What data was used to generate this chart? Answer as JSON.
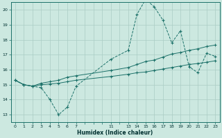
{
  "xlabel": "Humidex (Indice chaleur)",
  "background_color": "#cce8e0",
  "grid_color": "#aaccc4",
  "line_color": "#1a7068",
  "xlim": [
    -0.5,
    23.5
  ],
  "ylim": [
    12.5,
    20.5
  ],
  "yticks": [
    13,
    14,
    15,
    16,
    17,
    18,
    19,
    20
  ],
  "xtick_labels": [
    "0",
    "1",
    "2",
    "3",
    "4",
    "5",
    "6",
    "7",
    "",
    "",
    "",
    "11",
    "",
    "13",
    "14",
    "15",
    "16",
    "17",
    "18",
    "19",
    "20",
    "21",
    "22",
    "23"
  ],
  "series1_x": [
    0,
    1,
    2,
    3,
    4,
    5,
    6,
    7,
    11,
    13,
    14,
    15,
    16,
    17,
    18,
    19,
    20,
    21,
    22,
    23
  ],
  "series1_y": [
    15.3,
    15.0,
    14.9,
    14.8,
    14.0,
    13.0,
    13.5,
    14.9,
    16.7,
    17.3,
    19.7,
    20.7,
    20.2,
    19.3,
    17.8,
    18.6,
    16.2,
    15.8,
    17.1,
    16.9
  ],
  "series2_x": [
    0,
    1,
    2,
    3,
    4,
    5,
    6,
    7,
    11,
    13,
    14,
    15,
    16,
    17,
    18,
    19,
    20,
    21,
    22,
    23
  ],
  "series2_y": [
    15.3,
    15.0,
    14.9,
    15.0,
    15.05,
    15.1,
    15.2,
    15.3,
    15.55,
    15.7,
    15.8,
    15.85,
    15.95,
    16.05,
    16.15,
    16.25,
    16.35,
    16.42,
    16.5,
    16.6
  ],
  "series3_x": [
    0,
    1,
    2,
    3,
    4,
    5,
    6,
    7,
    11,
    13,
    14,
    15,
    16,
    17,
    18,
    19,
    20,
    21,
    22,
    23
  ],
  "series3_y": [
    15.3,
    15.0,
    14.9,
    15.1,
    15.2,
    15.3,
    15.5,
    15.6,
    15.95,
    16.15,
    16.35,
    16.55,
    16.65,
    16.85,
    17.05,
    17.15,
    17.3,
    17.4,
    17.55,
    17.65
  ]
}
